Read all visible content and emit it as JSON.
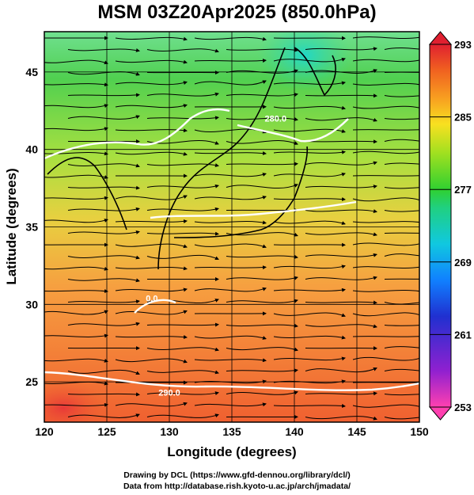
{
  "title": "MSM 03Z20Apr2025 (850.0hPa)",
  "x_axis": {
    "label": "Longitude (degrees)",
    "range": [
      120,
      150
    ],
    "ticks": [
      120,
      125,
      130,
      135,
      140,
      145,
      150
    ]
  },
  "y_axis": {
    "label": "Latitude  (degrees)",
    "range": [
      22.4,
      47.6
    ],
    "ticks": [
      25,
      30,
      35,
      40,
      45
    ]
  },
  "colorbar": {
    "min": 253,
    "max": 293,
    "tick_labels": [
      "293",
      "285",
      "277",
      "269",
      "261",
      "253"
    ],
    "tick_values": [
      293,
      285,
      277,
      269,
      261,
      253
    ],
    "colors": [
      "#ff40b0",
      "#9020d0",
      "#2030d0",
      "#1080ff",
      "#10c8e0",
      "#20d080",
      "#30d030",
      "#a0e020",
      "#f8e020",
      "#f8a020",
      "#f06020",
      "#e02030"
    ]
  },
  "contour_labels": [
    {
      "text": "0.0",
      "lon": 128.6,
      "lat": 30.2
    },
    {
      "text": "280.0",
      "lon": 138.5,
      "lat": 41.8
    },
    {
      "text": "290.0",
      "lon": 130.0,
      "lat": 24.1
    }
  ],
  "footer": {
    "line1": "Drawing by DCL (https://www.gfd-dennou.org/library/dcl/)",
    "line2": "Data from http://database.rish.kyoto-u.ac.jp/arch/jmadata/"
  }
}
